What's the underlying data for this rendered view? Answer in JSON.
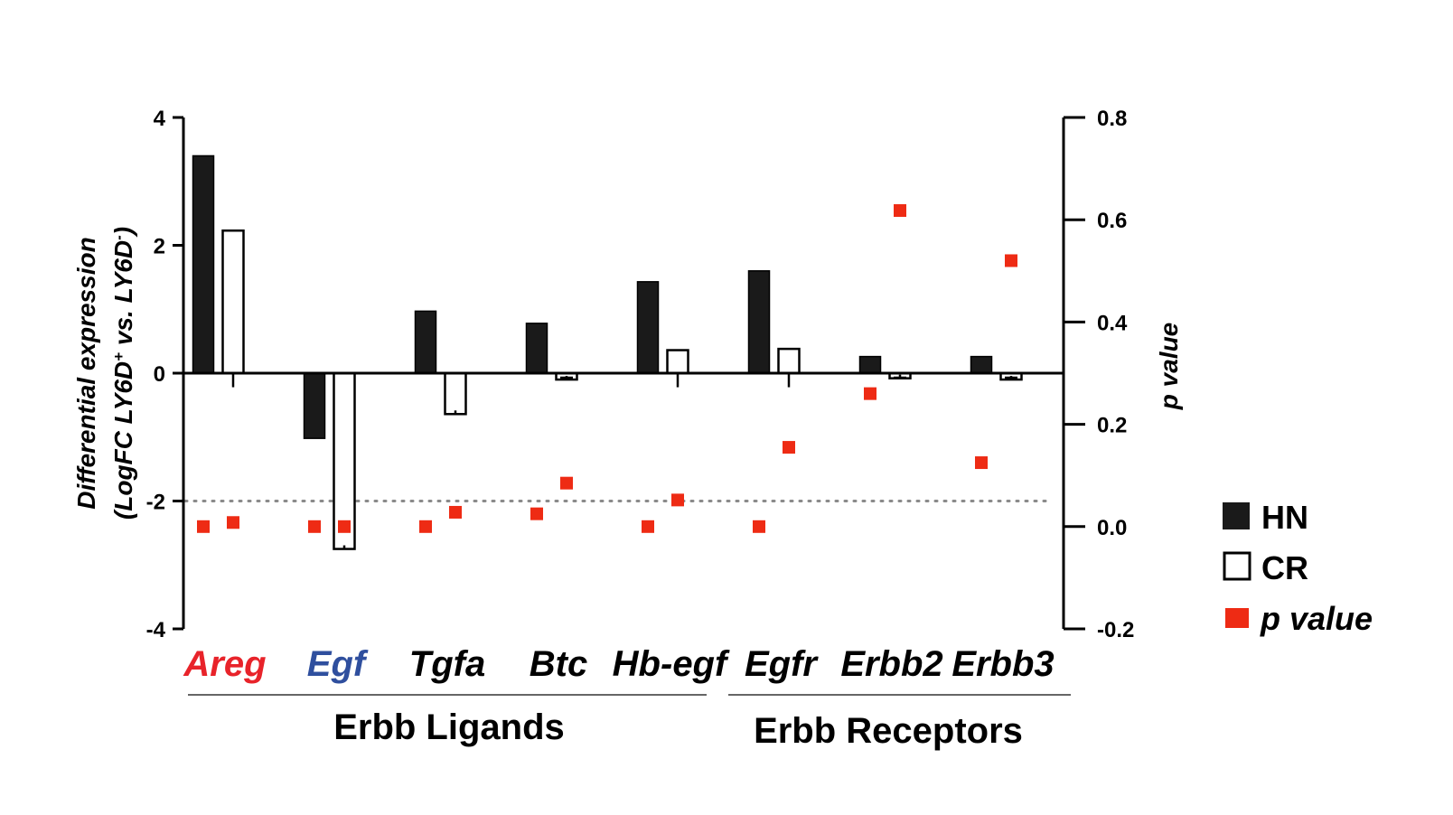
{
  "chart_data": {
    "type": "bar",
    "categories": [
      "Areg",
      "Egf",
      "Tgfa",
      "Btc",
      "Hb-egf",
      "Egfr",
      "Erbb2",
      "Erbb3"
    ],
    "category_colors": [
      "#e8232a",
      "#2f4f9e",
      "#000000",
      "#000000",
      "#000000",
      "#000000",
      "#000000",
      "#000000"
    ],
    "series": [
      {
        "name": "HN",
        "axis": "left",
        "values": [
          3.4,
          -1.02,
          0.97,
          0.78,
          1.43,
          1.6,
          0.26,
          0.26
        ],
        "errors": [
          0,
          0,
          0,
          0,
          0,
          0,
          0,
          0
        ],
        "color": "#1a1a1a"
      },
      {
        "name": "CR",
        "axis": "left",
        "values": [
          2.23,
          -2.75,
          -0.64,
          -0.1,
          0.36,
          0.38,
          -0.08,
          -0.1
        ],
        "errors": [
          0.22,
          0.22,
          0.22,
          0.18,
          0.22,
          0.22,
          0.18,
          0.18
        ],
        "color": "#ffffff"
      },
      {
        "name": "p value",
        "type": "scatter",
        "axis": "right",
        "hn": [
          0.0,
          0.0,
          0.0,
          0.025,
          0.0,
          0.0,
          0.26,
          0.125
        ],
        "cr": [
          0.008,
          0.0,
          0.028,
          0.085,
          0.052,
          0.155,
          0.618,
          0.52
        ],
        "color": "#ee2b14"
      }
    ],
    "ylabel_line1": "Differential expression",
    "ylabel_line2": "(LogFC LY6D",
    "ylabel_sup1": "+",
    "ylabel_line3": " vs. LY6D",
    "ylabel_sup2": "-",
    "ylabel_end": ")",
    "y2label": "p value",
    "ylim": [
      -4,
      4
    ],
    "yticks": [
      "4",
      "2",
      "0",
      "-2",
      "-4"
    ],
    "y2lim": [
      -0.2,
      0.8
    ],
    "y2ticks": [
      "0.8",
      "0.6",
      "0.4",
      "0.2",
      "0.0",
      "-0.2"
    ],
    "threshold_p": 0.05,
    "groups": [
      {
        "label": "Erbb Ligands"
      },
      {
        "label": "Erbb Receptors"
      }
    ],
    "legend_placement": "right",
    "legend": [
      {
        "label": "HN",
        "swatch": "filled"
      },
      {
        "label": "CR",
        "swatch": "open"
      },
      {
        "label": "p value",
        "swatch": "red-square"
      }
    ]
  }
}
